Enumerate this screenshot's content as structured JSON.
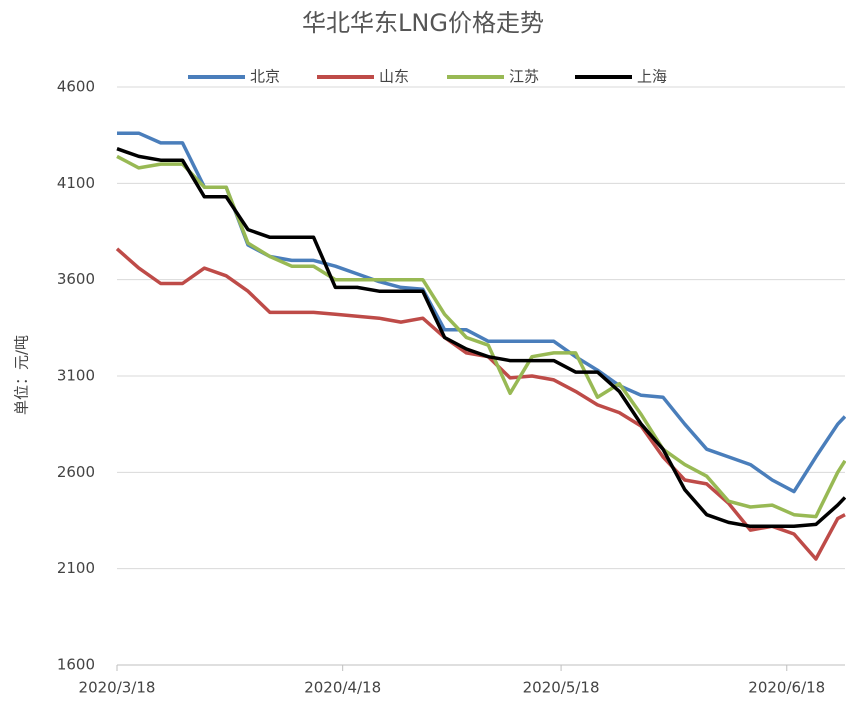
{
  "chart_data": {
    "type": "line",
    "title": "华北华东LNG价格走势",
    "y_label": "单位：元/吨",
    "x": [
      "2020/3/18",
      "2020/3/21",
      "2020/3/24",
      "2020/3/27",
      "2020/3/30",
      "2020/4/2",
      "2020/4/5",
      "2020/4/8",
      "2020/4/11",
      "2020/4/14",
      "2020/4/17",
      "2020/4/20",
      "2020/4/23",
      "2020/4/26",
      "2020/4/29",
      "2020/5/2",
      "2020/5/5",
      "2020/5/8",
      "2020/5/11",
      "2020/5/14",
      "2020/5/17",
      "2020/5/20",
      "2020/5/23",
      "2020/5/26",
      "2020/5/29",
      "2020/6/1",
      "2020/6/4",
      "2020/6/7",
      "2020/6/10",
      "2020/6/13",
      "2020/6/16",
      "2020/6/19",
      "2020/6/22",
      "2020/6/25",
      "2020/6/26"
    ],
    "series": [
      {
        "name": "北京",
        "color": "#4a7ebb",
        "values": [
          4360,
          4360,
          4310,
          4310,
          4080,
          4080,
          3780,
          3720,
          3700,
          3700,
          3670,
          3630,
          3590,
          3560,
          3550,
          3340,
          3340,
          3280,
          3280,
          3280,
          3280,
          3200,
          3130,
          3050,
          3000,
          2990,
          2850,
          2720,
          2680,
          2640,
          2560,
          2500,
          2680,
          2850,
          2890
        ]
      },
      {
        "name": "山东",
        "color": "#be4b48",
        "values": [
          3760,
          3660,
          3580,
          3580,
          3660,
          3620,
          3540,
          3430,
          3430,
          3430,
          3420,
          3410,
          3400,
          3380,
          3400,
          3300,
          3220,
          3200,
          3090,
          3100,
          3080,
          3020,
          2950,
          2910,
          2840,
          2680,
          2560,
          2540,
          2440,
          2300,
          2320,
          2280,
          2150,
          2360,
          2380
        ]
      },
      {
        "name": "江苏",
        "color": "#98b954",
        "values": [
          4240,
          4180,
          4200,
          4200,
          4080,
          4080,
          3790,
          3720,
          3670,
          3670,
          3600,
          3600,
          3600,
          3600,
          3600,
          3420,
          3300,
          3260,
          3010,
          3200,
          3220,
          3220,
          2990,
          3060,
          2900,
          2720,
          2640,
          2580,
          2450,
          2420,
          2430,
          2380,
          2370,
          2600,
          2660
        ]
      },
      {
        "name": "上海",
        "color": "#000000",
        "values": [
          4280,
          4240,
          4220,
          4220,
          4030,
          4030,
          3860,
          3820,
          3820,
          3820,
          3560,
          3560,
          3540,
          3540,
          3540,
          3300,
          3240,
          3200,
          3180,
          3180,
          3180,
          3120,
          3120,
          3020,
          2850,
          2720,
          2510,
          2380,
          2340,
          2320,
          2320,
          2320,
          2330,
          2430,
          2470
        ]
      }
    ],
    "xlim": [
      "2020/3/18",
      "2020/6/26"
    ],
    "xticks": [
      "2020/3/18",
      "2020/4/18",
      "2020/5/18",
      "2020/6/18"
    ],
    "ylim": [
      1600,
      4600
    ],
    "yticks": [
      1600,
      2100,
      2600,
      3100,
      3600,
      4100,
      4600
    ],
    "grid": true,
    "legend": "top"
  }
}
